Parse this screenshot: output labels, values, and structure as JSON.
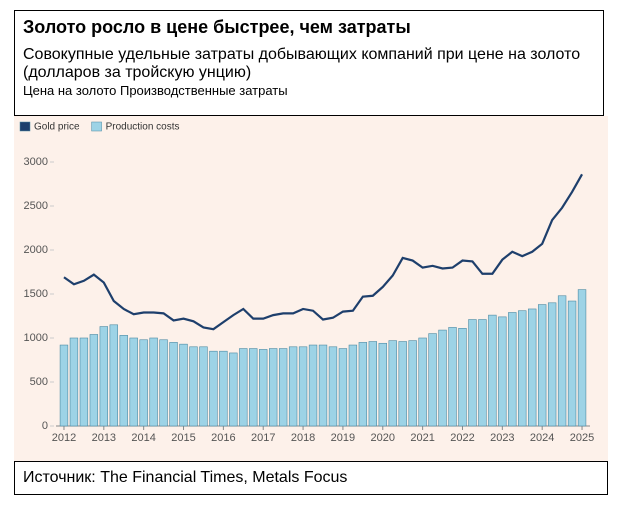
{
  "chart_data": {
    "type": "combo",
    "title": "Золото росло в цене быстрее, чем затраты",
    "subtitle": "Совокупные удельные затраты добывающих компаний при цене на золото (долларов за тройскую унцию)",
    "note": "Цена на золото Производственные затраты",
    "source": "Источник: The Financial Times, Metals Focus",
    "x": [
      2012,
      2012.25,
      2012.5,
      2012.75,
      2013,
      2013.25,
      2013.5,
      2013.75,
      2014,
      2014.25,
      2014.5,
      2014.75,
      2015,
      2015.25,
      2015.5,
      2015.75,
      2016,
      2016.25,
      2016.5,
      2016.75,
      2017,
      2017.25,
      2017.5,
      2017.75,
      2018,
      2018.25,
      2018.5,
      2018.75,
      2019,
      2019.25,
      2019.5,
      2019.75,
      2020,
      2020.25,
      2020.5,
      2020.75,
      2021,
      2021.25,
      2021.5,
      2021.75,
      2022,
      2022.25,
      2022.5,
      2022.75,
      2023,
      2023.25,
      2023.5,
      2023.75,
      2024,
      2024.25,
      2024.5,
      2024.75,
      2025
    ],
    "series": [
      {
        "name": "Production costs",
        "type": "bar",
        "color": "#9dd3e6",
        "values": [
          920,
          1000,
          1000,
          1040,
          1130,
          1150,
          1030,
          1000,
          980,
          1000,
          980,
          950,
          930,
          900,
          900,
          850,
          850,
          830,
          880,
          880,
          870,
          880,
          880,
          900,
          900,
          920,
          920,
          900,
          880,
          920,
          950,
          960,
          940,
          970,
          960,
          970,
          1000,
          1050,
          1090,
          1120,
          1110,
          1210,
          1210,
          1260,
          1240,
          1290,
          1310,
          1330,
          1380,
          1400,
          1480,
          1420,
          1550
        ]
      },
      {
        "name": "Gold price",
        "type": "line",
        "color": "#1e3f6c",
        "values": [
          1690,
          1610,
          1650,
          1720,
          1630,
          1420,
          1330,
          1270,
          1290,
          1290,
          1280,
          1200,
          1220,
          1190,
          1120,
          1100,
          1180,
          1260,
          1330,
          1220,
          1220,
          1260,
          1280,
          1280,
          1330,
          1310,
          1210,
          1230,
          1300,
          1310,
          1470,
          1480,
          1580,
          1710,
          1910,
          1880,
          1800,
          1820,
          1790,
          1800,
          1880,
          1870,
          1730,
          1730,
          1890,
          1980,
          1930,
          1980,
          2070,
          2340,
          2480,
          2660,
          2860
        ]
      }
    ],
    "xlim": [
      2011.8,
      2025.2
    ],
    "xticks": [
      2012,
      2013,
      2014,
      2015,
      2016,
      2017,
      2018,
      2019,
      2020,
      2021,
      2022,
      2023,
      2024,
      2025
    ],
    "ylim": [
      0,
      3000
    ],
    "yticks": [
      0,
      500,
      1000,
      1500,
      2000,
      2500,
      3000
    ]
  }
}
